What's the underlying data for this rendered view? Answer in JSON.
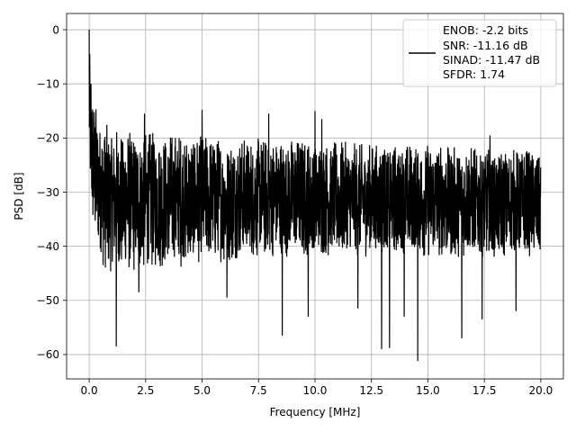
{
  "chart_data": {
    "type": "line",
    "title": "",
    "xlabel": "Frequency [MHz]",
    "ylabel": "PSD [dB]",
    "xlim": [
      -1.0,
      21.0
    ],
    "ylim": [
      -64.5,
      3.0
    ],
    "xticks": [
      0.0,
      2.5,
      5.0,
      7.5,
      10.0,
      12.5,
      15.0,
      17.5,
      20.0
    ],
    "xtick_labels": [
      "0.0",
      "2.5",
      "5.0",
      "7.5",
      "10.0",
      "12.5",
      "15.0",
      "17.5",
      "20.0"
    ],
    "yticks": [
      0,
      -10,
      -20,
      -30,
      -40,
      -50,
      -60
    ],
    "ytick_labels": [
      "0",
      "−10",
      "−20",
      "−30",
      "−40",
      "−50",
      "−60"
    ],
    "grid": true,
    "legend_position": "top-right",
    "line_color": "#000000",
    "series": [
      {
        "name": "ENOB: -2.2 bits\nSNR: -11.16 dB\nSINAD: -11.47 dB\nSFDR: 1.74",
        "legend_lines": [
          "ENOB: -2.2 bits",
          "SNR: -11.16 dB",
          "SINAD: -11.47 dB",
          "SFDR: 1.74"
        ],
        "envelope": {
          "x": [
            0.0,
            0.05,
            0.1,
            0.2,
            0.4,
            0.6,
            1.0,
            2.0,
            3.0,
            4.0,
            5.0,
            6.0,
            7.0,
            8.0,
            9.0,
            10.0,
            11.0,
            12.0,
            13.0,
            14.0,
            15.0,
            16.0,
            17.0,
            18.0,
            19.0,
            20.0
          ],
          "upper": [
            0.0,
            -5.0,
            -10.0,
            -13.0,
            -15.0,
            -17.0,
            -18.0,
            -18.5,
            -19.0,
            -19.0,
            -19.5,
            -20.0,
            -20.0,
            -20.0,
            -20.0,
            -20.5,
            -20.5,
            -21.0,
            -21.0,
            -21.0,
            -21.0,
            -21.5,
            -21.5,
            -22.0,
            -22.0,
            -22.0
          ],
          "lower": [
            -26.0,
            -30.0,
            -35.0,
            -38.0,
            -42.0,
            -44.0,
            -45.0,
            -45.0,
            -44.0,
            -44.0,
            -43.0,
            -43.0,
            -42.0,
            -42.0,
            -42.0,
            -42.0,
            -42.0,
            -42.0,
            -42.0,
            -42.0,
            -42.0,
            -42.0,
            -42.0,
            -42.0,
            -42.0,
            -42.0
          ]
        },
        "peaks": [
          {
            "x": 0.0,
            "y": 0.0
          },
          {
            "x": 0.08,
            "y": -10.0
          },
          {
            "x": 2.45,
            "y": -15.5
          },
          {
            "x": 5.0,
            "y": -14.8
          },
          {
            "x": 7.95,
            "y": -15.5
          },
          {
            "x": 10.0,
            "y": -15.0
          },
          {
            "x": 10.3,
            "y": -16.5
          },
          {
            "x": 17.75,
            "y": -19.5
          }
        ],
        "dips": [
          {
            "x": 1.2,
            "y": -58.5
          },
          {
            "x": 2.2,
            "y": -48.5
          },
          {
            "x": 6.1,
            "y": -49.5
          },
          {
            "x": 8.55,
            "y": -56.5
          },
          {
            "x": 9.7,
            "y": -53.0
          },
          {
            "x": 11.9,
            "y": -51.5
          },
          {
            "x": 12.95,
            "y": -59.0
          },
          {
            "x": 13.3,
            "y": -58.8
          },
          {
            "x": 13.95,
            "y": -53.0
          },
          {
            "x": 14.55,
            "y": -61.2
          },
          {
            "x": 16.5,
            "y": -57.0
          },
          {
            "x": 17.4,
            "y": -53.5
          },
          {
            "x": 18.9,
            "y": -52.0
          }
        ]
      }
    ]
  }
}
